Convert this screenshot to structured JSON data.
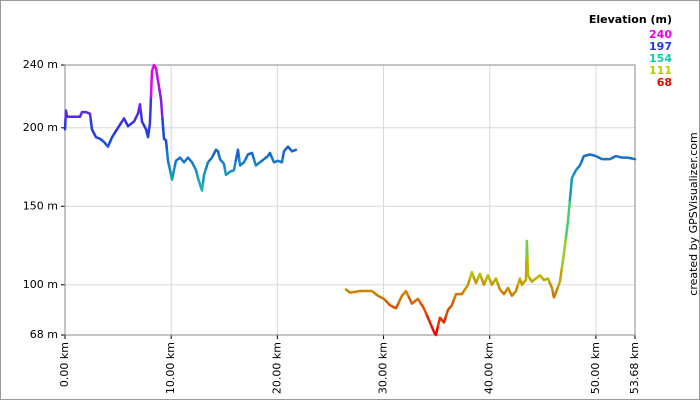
{
  "chart_data": {
    "type": "line",
    "x": [
      0.0,
      0.09,
      0.19,
      0.94,
      1.41,
      1.6,
      1.98,
      2.35,
      2.54,
      2.92,
      3.3,
      3.67,
      4.05,
      4.43,
      4.99,
      5.56,
      5.93,
      6.5,
      6.87,
      7.06,
      7.25,
      7.63,
      7.82,
      8.0,
      8.19,
      8.38,
      8.57,
      8.76,
      9.04,
      9.32,
      9.51,
      9.7,
      9.89,
      10.08,
      10.26,
      10.45,
      10.83,
      11.21,
      11.58,
      11.96,
      12.34,
      12.52,
      12.71,
      12.9,
      13.09,
      13.47,
      13.84,
      14.22,
      14.41,
      14.6,
      14.97,
      15.16,
      15.54,
      15.91,
      16.29,
      16.48,
      16.85,
      17.23,
      17.61,
      17.98,
      18.36,
      18.74,
      19.11,
      19.3,
      19.68,
      20.06,
      20.43,
      20.62,
      21.0,
      21.37,
      21.75,
      24.0,
      26.46,
      26.84,
      27.78,
      28.91,
      29.47,
      30.04,
      30.6,
      31.17,
      31.73,
      32.11,
      32.67,
      33.24,
      33.8,
      34.37,
      34.75,
      34.93,
      35.31,
      35.69,
      36.07,
      36.44,
      36.82,
      37.38,
      37.95,
      38.32,
      38.7,
      39.08,
      39.45,
      39.83,
      40.21,
      40.58,
      40.96,
      41.34,
      41.71,
      42.09,
      42.47,
      42.84,
      43.03,
      43.41,
      43.5,
      43.6,
      43.97,
      44.35,
      44.73,
      45.1,
      45.48,
      45.86,
      46.04,
      46.23,
      46.61,
      46.99,
      47.36,
      47.74,
      48.12,
      48.49,
      48.87,
      49.44,
      50.0,
      50.56,
      51.32,
      51.88,
      52.45,
      53.01,
      53.68
    ],
    "values": [
      199,
      211,
      207,
      207,
      207,
      210,
      210,
      209,
      199,
      194,
      193,
      191,
      188,
      194,
      200,
      206,
      201,
      204,
      209,
      215,
      204,
      199,
      194,
      203,
      236,
      240,
      238,
      230,
      218,
      193,
      192,
      179,
      173,
      167,
      173,
      179,
      181,
      178,
      181,
      178,
      173,
      168,
      164,
      160,
      170,
      178,
      181,
      186,
      185,
      180,
      177,
      170,
      172,
      173,
      186,
      176,
      178,
      183,
      184,
      176,
      178,
      180,
      182,
      184,
      178,
      179,
      178,
      185,
      188,
      185,
      186,
      null,
      97,
      95,
      96,
      96,
      93,
      91,
      87,
      85,
      93,
      96,
      88,
      91,
      85,
      76,
      70,
      68,
      79,
      76,
      84,
      87,
      94,
      94,
      100,
      108,
      101,
      107,
      100,
      106,
      100,
      104,
      97,
      94,
      98,
      93,
      96,
      104,
      100,
      103,
      128,
      106,
      102,
      104,
      106,
      103,
      104,
      98,
      92,
      95,
      102,
      120,
      140,
      168,
      173,
      176,
      182,
      183,
      182,
      180,
      180,
      182,
      181,
      181,
      180
    ],
    "xlim": [
      0,
      53.68
    ],
    "xticks": [
      {
        "value": 0,
        "label": "0.00 km"
      },
      {
        "value": 10,
        "label": "10.00 km"
      },
      {
        "value": 20,
        "label": "20.00 km"
      },
      {
        "value": 30,
        "label": "30.00 km"
      },
      {
        "value": 40,
        "label": "40.00 km"
      },
      {
        "value": 50,
        "label": "50.00 km"
      },
      {
        "value": 53.68,
        "label": "53.68 km"
      }
    ],
    "ylim": [
      68,
      240
    ],
    "yticks": [
      {
        "value": 240,
        "label": "240 m"
      },
      {
        "value": 200,
        "label": "200 m"
      },
      {
        "value": 150,
        "label": "150 m"
      },
      {
        "value": 100,
        "label": "100 m"
      },
      {
        "value": 68,
        "label": "68 m"
      }
    ],
    "grid": true,
    "color_scale": {
      "title": "Elevation (m)",
      "stops": [
        {
          "value": 240,
          "color": "#ee00ee"
        },
        {
          "value": 197,
          "color": "#1a3cdd"
        },
        {
          "value": 154,
          "color": "#11ccaa"
        },
        {
          "value": 111,
          "color": "#bbcc00"
        },
        {
          "value": 68,
          "color": "#ee0000"
        }
      ]
    },
    "credit": "created by GPSVisualizer.com"
  }
}
